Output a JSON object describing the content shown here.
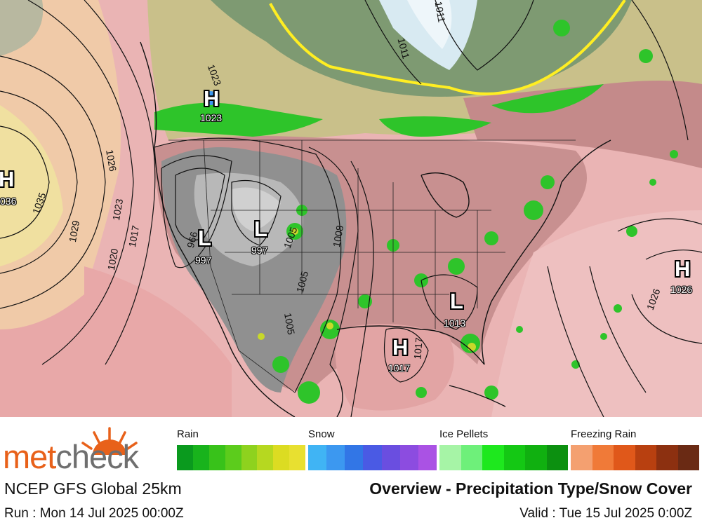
{
  "branding": {
    "logo_part1": "met",
    "logo_part2": "check",
    "logo_color_primary": "#e8611a",
    "logo_color_secondary": "#6f6f6f"
  },
  "model_name": "NCEP GFS Global 25km",
  "title": "Overview - Precipitation Type/Snow Cover",
  "run": "Run : Mon 14 Jul 2025 00:00Z",
  "valid": "Valid : Tue 15 Jul 2025 0:00Z",
  "legend": [
    {
      "label": "Rain",
      "colors": [
        "#0a9a1e",
        "#18b31c",
        "#38c21a",
        "#5ccc1c",
        "#8ed21e",
        "#b6d820",
        "#dcdc22",
        "#e8e030"
      ]
    },
    {
      "label": "Snow",
      "colors": [
        "#40b4f4",
        "#3c98f0",
        "#3276e6",
        "#4a5ae4",
        "#6a4ee0",
        "#8c4ce0",
        "#aa52e4"
      ]
    },
    {
      "label": "Ice Pellets",
      "colors": [
        "#a6f4a6",
        "#6ef07a",
        "#1ee81e",
        "#14c814",
        "#10b010",
        "#0c9010"
      ]
    },
    {
      "label": "Freezing Rain",
      "colors": [
        "#f4a070",
        "#f07a38",
        "#e0581a",
        "#b84010",
        "#8c3010",
        "#6a2a14"
      ]
    }
  ],
  "pressure_centers": [
    {
      "type": "H",
      "value": "1023"
    },
    {
      "type": "H",
      "value": "036"
    },
    {
      "type": "L",
      "value": "997"
    },
    {
      "type": "L",
      "value": "997"
    },
    {
      "type": "L",
      "value": "1013"
    },
    {
      "type": "H",
      "value": "1017"
    },
    {
      "type": "H",
      "value": "1026"
    }
  ],
  "isobar_labels": [
    "1023",
    "1026",
    "1035",
    "1029",
    "1023",
    "1020",
    "1017",
    "966",
    "1005",
    "1008",
    "1005",
    "1005",
    "1011",
    "1017",
    "1011",
    "1026"
  ]
}
